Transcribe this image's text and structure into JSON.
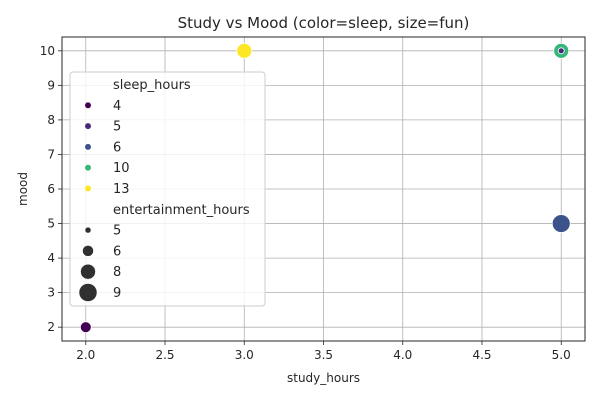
{
  "chart_data": {
    "type": "scatter",
    "title": "Study vs Mood (color=sleep, size=fun)",
    "xlabel": "study_hours",
    "ylabel": "mood",
    "xlim": [
      1.85,
      5.15
    ],
    "ylim": [
      1.6,
      10.4
    ],
    "xticks": [
      "2.0",
      "2.5",
      "3.0",
      "3.5",
      "4.0",
      "4.5",
      "5.0"
    ],
    "yticks": [
      "2",
      "3",
      "4",
      "5",
      "6",
      "7",
      "8",
      "9",
      "10"
    ],
    "grid": true,
    "points": [
      {
        "x": 2.0,
        "y": 2,
        "sleep_hours": 4,
        "entertainment_hours": 6
      },
      {
        "x": 3.0,
        "y": 10,
        "sleep_hours": 13,
        "entertainment_hours": 8
      },
      {
        "x": 5.0,
        "y": 10,
        "sleep_hours": 10,
        "entertainment_hours": 8
      },
      {
        "x": 5.0,
        "y": 10,
        "sleep_hours": 5,
        "entertainment_hours": 5
      },
      {
        "x": 5.0,
        "y": 5,
        "sleep_hours": 6,
        "entertainment_hours": 9
      }
    ],
    "colors": {
      "4": "#440154",
      "5": "#482878",
      "6": "#3b528b",
      "10": "#35b779",
      "13": "#fde725"
    },
    "sizes": {
      "5": 3,
      "6": 5.5,
      "8": 7.5,
      "9": 9
    },
    "legend": {
      "position": "upper-left",
      "hue_title": "sleep_hours",
      "hue_entries": [
        "4",
        "5",
        "6",
        "10",
        "13"
      ],
      "size_title": "entertainment_hours",
      "size_entries": [
        "5",
        "6",
        "8",
        "9"
      ],
      "size_marker_color": "#303030"
    }
  }
}
